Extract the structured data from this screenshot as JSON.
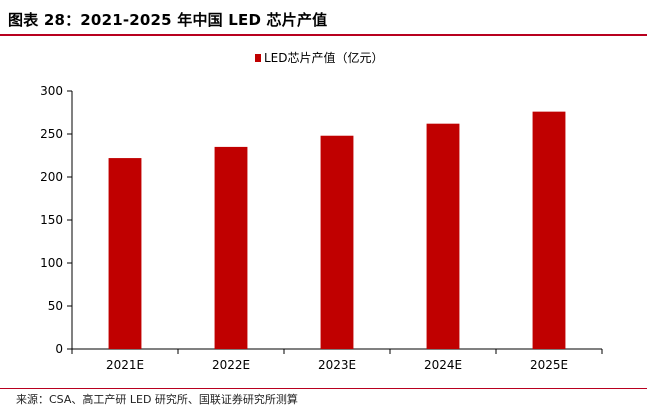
{
  "header": {
    "figure_title": "图表 28：2021-2025 年中国 LED 芯片产值"
  },
  "footer": {
    "source": "来源：CSA、高工产研 LED 研究所、国联证券研究所测算"
  },
  "colors": {
    "bar": "#c00000",
    "rule": "#b8001f"
  },
  "chart_data": {
    "type": "bar",
    "categories": [
      "2021E",
      "2022E",
      "2023E",
      "2024E",
      "2025E"
    ],
    "series": [
      {
        "name": "LED芯片产值（亿元）",
        "values": [
          222,
          235,
          248,
          262,
          276
        ]
      }
    ],
    "ylim": [
      0,
      300
    ],
    "yticks": [
      0,
      50,
      100,
      150,
      200,
      250,
      300
    ],
    "legend_position": "top-center",
    "grid": false
  }
}
